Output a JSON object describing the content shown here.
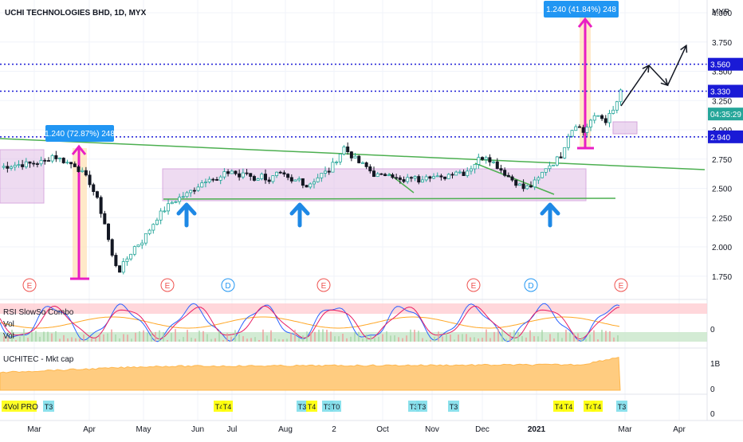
{
  "header": {
    "title": "UCHI TECHNOLOGIES BHD, 1D, MYX",
    "currency": "MYR"
  },
  "chart_data": {
    "type": "candlestick",
    "title": "UCHI TECHNOLOGIES BHD, 1D, MYX",
    "xlabel": "",
    "ylabel": "MYR",
    "ylim": [
      1.5,
      4.05
    ],
    "y_ticks": [
      "4.000",
      "3.750",
      "3.500",
      "3.250",
      "3.000",
      "2.750",
      "2.500",
      "2.250",
      "2.000",
      "1.750"
    ],
    "x_ticks": [
      "Mar",
      "Apr",
      "May",
      "Jun",
      "Jul",
      "Aug",
      "2",
      "Oct",
      "Nov",
      "Dec",
      "2021",
      "Mar",
      "Apr"
    ],
    "price_labels": [
      {
        "text": "3.560",
        "value": 3.56
      },
      {
        "text": "3.330",
        "value": 3.33
      },
      {
        "text": "04:35:29",
        "value": 3.135
      },
      {
        "text": "2.940",
        "value": 2.94
      }
    ],
    "annotations": [
      {
        "text": "1.240 (72.87%) 248",
        "kind": "measure"
      },
      {
        "text": "1.240 (41.84%) 248",
        "kind": "measure"
      }
    ],
    "events": [
      "E",
      "E",
      "D",
      "E",
      "E",
      "D",
      "E"
    ],
    "ohlc_path": [
      [
        0,
        2.68
      ],
      [
        4,
        2.7
      ],
      [
        8,
        2.71
      ],
      [
        12,
        2.73
      ],
      [
        14,
        2.78
      ],
      [
        16,
        2.75
      ],
      [
        18,
        2.72
      ],
      [
        20,
        2.7
      ],
      [
        22,
        2.63
      ],
      [
        24,
        2.55
      ],
      [
        26,
        2.4
      ],
      [
        28,
        2.2
      ],
      [
        30,
        1.92
      ],
      [
        31,
        1.85
      ],
      [
        32,
        1.8
      ],
      [
        34,
        1.9
      ],
      [
        36,
        2.0
      ],
      [
        38,
        2.05
      ],
      [
        40,
        2.15
      ],
      [
        42,
        2.25
      ],
      [
        44,
        2.32
      ],
      [
        46,
        2.38
      ],
      [
        48,
        2.42
      ],
      [
        50,
        2.45
      ],
      [
        52,
        2.5
      ],
      [
        54,
        2.55
      ],
      [
        56,
        2.6
      ],
      [
        58,
        2.56
      ],
      [
        60,
        2.62
      ],
      [
        62,
        2.65
      ],
      [
        64,
        2.6
      ],
      [
        66,
        2.63
      ],
      [
        68,
        2.58
      ],
      [
        70,
        2.61
      ],
      [
        72,
        2.57
      ],
      [
        74,
        2.62
      ],
      [
        76,
        2.6
      ],
      [
        78,
        2.55
      ],
      [
        80,
        2.58
      ],
      [
        82,
        2.52
      ],
      [
        84,
        2.57
      ],
      [
        86,
        2.62
      ],
      [
        88,
        2.65
      ],
      [
        90,
        2.75
      ],
      [
        92,
        2.85
      ],
      [
        94,
        2.78
      ],
      [
        96,
        2.72
      ],
      [
        98,
        2.68
      ],
      [
        100,
        2.62
      ],
      [
        102,
        2.6
      ],
      [
        104,
        2.64
      ],
      [
        106,
        2.58
      ],
      [
        108,
        2.55
      ],
      [
        110,
        2.6
      ],
      [
        112,
        2.57
      ],
      [
        114,
        2.62
      ],
      [
        116,
        2.6
      ],
      [
        118,
        2.58
      ],
      [
        120,
        2.62
      ],
      [
        122,
        2.65
      ],
      [
        124,
        2.63
      ],
      [
        126,
        2.68
      ],
      [
        128,
        2.75
      ],
      [
        130,
        2.78
      ],
      [
        132,
        2.72
      ],
      [
        134,
        2.66
      ],
      [
        136,
        2.6
      ],
      [
        138,
        2.55
      ],
      [
        140,
        2.5
      ],
      [
        142,
        2.52
      ],
      [
        144,
        2.58
      ],
      [
        146,
        2.68
      ],
      [
        148,
        2.72
      ],
      [
        150,
        2.78
      ],
      [
        152,
        2.96
      ],
      [
        154,
        3.05
      ],
      [
        156,
        2.98
      ],
      [
        158,
        3.08
      ],
      [
        160,
        3.12
      ],
      [
        162,
        3.08
      ],
      [
        164,
        3.16
      ],
      [
        166,
        3.32
      ]
    ],
    "horizontal_levels": [
      3.56,
      3.33,
      2.94
    ],
    "projection": [
      [
        166,
        3.33
      ],
      [
        171,
        3.55
      ],
      [
        176,
        3.38
      ],
      [
        181,
        3.72
      ]
    ]
  },
  "panes": {
    "oscillator": {
      "title": "RSI SlowSo Combo",
      "sub1": "Vol",
      "sub2": "Vol",
      "value": "0"
    },
    "market_cap": {
      "title": "UCHITEC - Mkt cap",
      "ticks": [
        "1B",
        "0"
      ]
    },
    "bottom": {
      "title": "4Vol PRO",
      "value": "0",
      "badges": [
        "T3",
        "T4",
        "T4",
        "T3",
        "T4",
        "T3",
        "T0",
        "T3",
        "T3",
        "T3",
        "T4",
        "T4",
        "T4",
        "T4",
        "T3"
      ]
    }
  },
  "colors": {
    "up": "#26a69a",
    "down": "#ef5350",
    "candle_dark": "#131722",
    "measure_line": "#e91ec4",
    "measure_label": "#2196f3",
    "range_box": "#e1bee7",
    "trend": "#4caf50",
    "arrows": "#1e88e5",
    "levels": "#1a1ad6",
    "mktcap_fill": "#ffcc80",
    "osc_red_band": "#ffcdd2",
    "osc_green_band": "#c8e6c9"
  }
}
